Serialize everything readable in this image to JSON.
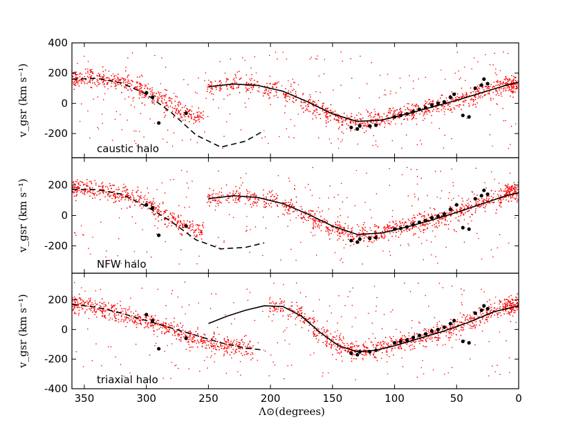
{
  "chart_data": {
    "type": "scatter",
    "xlabel": "Λ⊙(degrees)",
    "ylabel": "v_gsr (km s⁻¹)",
    "xlim": [
      360,
      0
    ],
    "x_ticks": [
      "350",
      "300",
      "250",
      "200",
      "150",
      "100",
      "50",
      "0"
    ],
    "x_tick_values": [
      350,
      300,
      250,
      200,
      150,
      100,
      50,
      0
    ],
    "colors": {
      "simulation": "#ff0000",
      "observed": "#000000",
      "model": "#000000"
    },
    "panels": [
      {
        "label": "caustic halo",
        "ylim": [
          -360,
          400
        ],
        "y_ticks": [
          "400",
          "200",
          "0",
          "-200"
        ],
        "y_tick_values": [
          400,
          200,
          0,
          -200
        ],
        "solid_line": {
          "x": [
            250,
            230,
            210,
            190,
            170,
            150,
            130,
            110,
            90,
            70,
            50,
            30,
            10,
            0
          ],
          "y": [
            110,
            128,
            118,
            80,
            10,
            -70,
            -120,
            -110,
            -70,
            -25,
            20,
            70,
            120,
            140
          ]
        },
        "dashed_line": {
          "x": [
            360,
            340,
            320,
            300,
            280,
            260,
            240,
            220,
            205
          ],
          "y": [
            160,
            165,
            135,
            60,
            -60,
            -210,
            -290,
            -250,
            -180
          ]
        },
        "stream_points": [
          [
            360,
            160
          ],
          [
            350,
            165
          ],
          [
            340,
            168
          ],
          [
            330,
            160
          ],
          [
            320,
            140
          ],
          [
            310,
            110
          ],
          [
            300,
            70
          ],
          [
            290,
            30
          ],
          [
            280,
            -20
          ],
          [
            270,
            -60
          ],
          [
            260,
            -90
          ],
          [
            245,
            105
          ],
          [
            230,
            125
          ],
          [
            215,
            120
          ],
          [
            200,
            90
          ],
          [
            185,
            50
          ],
          [
            170,
            0
          ],
          [
            160,
            -45
          ],
          [
            150,
            -80
          ],
          [
            140,
            -110
          ],
          [
            130,
            -125
          ],
          [
            120,
            -120
          ],
          [
            110,
            -105
          ],
          [
            100,
            -85
          ],
          [
            90,
            -65
          ],
          [
            80,
            -45
          ],
          [
            70,
            -30
          ],
          [
            60,
            -10
          ],
          [
            50,
            15
          ],
          [
            40,
            40
          ],
          [
            30,
            70
          ],
          [
            20,
            95
          ],
          [
            10,
            120
          ],
          [
            5,
            130
          ]
        ],
        "observed": [
          [
            300,
            70
          ],
          [
            295,
            40
          ],
          [
            290,
            -130
          ],
          [
            268,
            -65
          ],
          [
            135,
            -160
          ],
          [
            130,
            -170
          ],
          [
            128,
            -150
          ],
          [
            120,
            -150
          ],
          [
            115,
            -145
          ],
          [
            100,
            -90
          ],
          [
            95,
            -80
          ],
          [
            90,
            -70
          ],
          [
            85,
            -55
          ],
          [
            80,
            -40
          ],
          [
            75,
            -30
          ],
          [
            70,
            -10
          ],
          [
            65,
            0
          ],
          [
            60,
            10
          ],
          [
            55,
            40
          ],
          [
            52,
            60
          ],
          [
            45,
            -80
          ],
          [
            40,
            -90
          ],
          [
            35,
            100
          ],
          [
            30,
            120
          ],
          [
            28,
            160
          ],
          [
            25,
            130
          ]
        ]
      },
      {
        "label": "NFW halo",
        "ylim": [
          -380,
          380
        ],
        "y_ticks": [
          "200",
          "0",
          "-200"
        ],
        "y_tick_values": [
          200,
          0,
          -200
        ],
        "solid_line": {
          "x": [
            250,
            230,
            210,
            190,
            170,
            150,
            130,
            110,
            90,
            70,
            50,
            30,
            10,
            0
          ],
          "y": [
            110,
            130,
            118,
            78,
            10,
            -70,
            -125,
            -115,
            -75,
            -30,
            20,
            75,
            130,
            150
          ]
        },
        "dashed_line": {
          "x": [
            360,
            340,
            320,
            300,
            280,
            260,
            240,
            220,
            205
          ],
          "y": [
            170,
            170,
            140,
            60,
            -40,
            -160,
            -220,
            -210,
            -180
          ]
        },
        "stream_points": [
          [
            360,
            170
          ],
          [
            350,
            172
          ],
          [
            340,
            168
          ],
          [
            330,
            160
          ],
          [
            320,
            140
          ],
          [
            310,
            110
          ],
          [
            300,
            70
          ],
          [
            290,
            30
          ],
          [
            280,
            -20
          ],
          [
            270,
            -60
          ],
          [
            260,
            -100
          ],
          [
            245,
            110
          ],
          [
            230,
            130
          ],
          [
            215,
            120
          ],
          [
            200,
            95
          ],
          [
            185,
            55
          ],
          [
            170,
            10
          ],
          [
            160,
            -40
          ],
          [
            150,
            -80
          ],
          [
            140,
            -115
          ],
          [
            130,
            -130
          ],
          [
            120,
            -125
          ],
          [
            110,
            -110
          ],
          [
            100,
            -90
          ],
          [
            90,
            -70
          ],
          [
            80,
            -50
          ],
          [
            70,
            -30
          ],
          [
            60,
            -10
          ],
          [
            50,
            20
          ],
          [
            40,
            50
          ],
          [
            30,
            80
          ],
          [
            20,
            110
          ],
          [
            10,
            140
          ],
          [
            5,
            150
          ]
        ],
        "observed": [
          [
            300,
            70
          ],
          [
            295,
            50
          ],
          [
            290,
            -130
          ],
          [
            268,
            -70
          ],
          [
            135,
            -165
          ],
          [
            130,
            -175
          ],
          [
            128,
            -155
          ],
          [
            120,
            -150
          ],
          [
            115,
            -145
          ],
          [
            100,
            -90
          ],
          [
            95,
            -85
          ],
          [
            90,
            -75
          ],
          [
            85,
            -60
          ],
          [
            80,
            -45
          ],
          [
            75,
            -35
          ],
          [
            70,
            -15
          ],
          [
            65,
            -5
          ],
          [
            60,
            10
          ],
          [
            55,
            40
          ],
          [
            50,
            70
          ],
          [
            45,
            -80
          ],
          [
            40,
            -90
          ],
          [
            35,
            110
          ],
          [
            30,
            130
          ],
          [
            28,
            165
          ],
          [
            25,
            140
          ]
        ]
      },
      {
        "label": "triaxial halo",
        "ylim": [
          -400,
          380
        ],
        "y_ticks": [
          "200",
          "0",
          "-200",
          "-400"
        ],
        "y_tick_values": [
          200,
          0,
          -200,
          -400
        ],
        "solid_line": {
          "x": [
            250,
            235,
            220,
            205,
            190,
            175,
            160,
            145,
            130,
            115,
            100,
            80,
            60,
            40,
            20,
            0
          ],
          "y": [
            40,
            90,
            130,
            160,
            155,
            90,
            -20,
            -110,
            -150,
            -140,
            -110,
            -60,
            -10,
            50,
            120,
            160
          ]
        },
        "dashed_line": {
          "x": [
            360,
            340,
            320,
            300,
            280,
            260,
            240,
            220,
            205
          ],
          "y": [
            170,
            150,
            110,
            60,
            10,
            -40,
            -90,
            -125,
            -140
          ]
        },
        "stream_points": [
          [
            360,
            170
          ],
          [
            350,
            165
          ],
          [
            340,
            150
          ],
          [
            330,
            125
          ],
          [
            320,
            100
          ],
          [
            310,
            75
          ],
          [
            300,
            55
          ],
          [
            290,
            30
          ],
          [
            280,
            0
          ],
          [
            270,
            -30
          ],
          [
            260,
            -60
          ],
          [
            250,
            -85
          ],
          [
            240,
            -100
          ],
          [
            230,
            -115
          ],
          [
            220,
            -130
          ],
          [
            195,
            150
          ],
          [
            180,
            120
          ],
          [
            170,
            60
          ],
          [
            160,
            -20
          ],
          [
            150,
            -90
          ],
          [
            140,
            -130
          ],
          [
            130,
            -150
          ],
          [
            120,
            -140
          ],
          [
            110,
            -120
          ],
          [
            100,
            -100
          ],
          [
            90,
            -80
          ],
          [
            80,
            -60
          ],
          [
            70,
            -40
          ],
          [
            60,
            -15
          ],
          [
            50,
            15
          ],
          [
            40,
            50
          ],
          [
            30,
            90
          ],
          [
            20,
            130
          ],
          [
            10,
            155
          ],
          [
            5,
            165
          ]
        ],
        "observed": [
          [
            300,
            100
          ],
          [
            295,
            60
          ],
          [
            290,
            -130
          ],
          [
            268,
            -60
          ],
          [
            135,
            -160
          ],
          [
            130,
            -170
          ],
          [
            128,
            -150
          ],
          [
            120,
            -150
          ],
          [
            115,
            -140
          ],
          [
            100,
            -90
          ],
          [
            95,
            -80
          ],
          [
            90,
            -70
          ],
          [
            85,
            -55
          ],
          [
            80,
            -40
          ],
          [
            75,
            -30
          ],
          [
            70,
            -10
          ],
          [
            65,
            0
          ],
          [
            60,
            15
          ],
          [
            55,
            40
          ],
          [
            52,
            60
          ],
          [
            45,
            -80
          ],
          [
            40,
            -90
          ],
          [
            35,
            110
          ],
          [
            30,
            130
          ],
          [
            28,
            160
          ],
          [
            25,
            140
          ]
        ]
      }
    ]
  }
}
